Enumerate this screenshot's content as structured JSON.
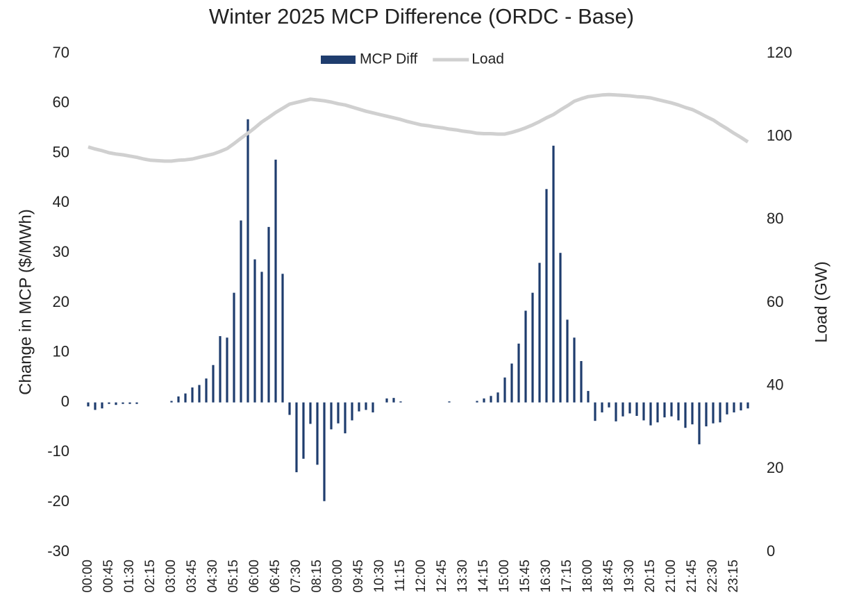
{
  "chart_data": {
    "type": "bar",
    "title": "Winter 2025 MCP Difference (ORDC - Base)",
    "y_label": "Change in MCP ($/MWh)",
    "y2_label": "Load (GW)",
    "categories": [
      "00:00",
      null,
      null,
      "00:45",
      null,
      null,
      "01:30",
      null,
      null,
      "02:15",
      null,
      null,
      "03:00",
      null,
      null,
      "03:45",
      null,
      null,
      "04:30",
      null,
      null,
      "05:15",
      null,
      null,
      "06:00",
      null,
      null,
      "06:45",
      null,
      null,
      "07:30",
      null,
      null,
      "08:15",
      null,
      null,
      "09:00",
      null,
      null,
      "09:45",
      null,
      null,
      "10:30",
      null,
      null,
      "11:15",
      null,
      null,
      "12:00",
      null,
      null,
      "12:45",
      null,
      null,
      "13:30",
      null,
      null,
      "14:15",
      null,
      null,
      "15:00",
      null,
      null,
      "15:45",
      null,
      null,
      "16:30",
      null,
      null,
      "17:15",
      null,
      null,
      "18:00",
      null,
      null,
      "18:45",
      null,
      null,
      "19:30",
      null,
      null,
      "20:15",
      null,
      null,
      "21:00",
      null,
      null,
      "21:45",
      null,
      null,
      "22:30",
      null,
      null,
      "23:15",
      null,
      null
    ],
    "series": [
      {
        "name": "MCP Diff",
        "type": "bar",
        "color": "#1f3d6e",
        "values": [
          -0.8,
          -1.5,
          -1.2,
          -0.3,
          -0.5,
          -0.3,
          -0.3,
          -0.3,
          0,
          0,
          0,
          0,
          0.3,
          1.2,
          1.8,
          3,
          3.5,
          4.8,
          7.5,
          13.3,
          13,
          22,
          36.5,
          56.8,
          28.7,
          26.2,
          35.2,
          48.7,
          25.8,
          -2.5,
          -14,
          -11.3,
          -4.3,
          -12.5,
          -19.8,
          -5.4,
          -4.2,
          -6.2,
          -3.6,
          -1.8,
          -1.5,
          -2,
          0,
          0.8,
          0.9,
          0.2,
          0,
          0,
          0,
          0,
          0,
          0,
          0.2,
          0,
          0,
          0,
          0.3,
          0.8,
          1.3,
          2,
          5,
          7.8,
          11.8,
          18.4,
          22,
          28,
          42.8,
          51.5,
          30,
          16.6,
          13,
          8.3,
          2.3,
          -3.7,
          -2,
          -1,
          -3.8,
          -2.8,
          -2.2,
          -2.7,
          -3.6,
          -4.6,
          -4,
          -3,
          -2.8,
          -3.6,
          -5.1,
          -4.4,
          -8.4,
          -4.8,
          -4.2,
          -4,
          -2.4,
          -2,
          -1.6,
          -1.2
        ]
      },
      {
        "name": "Load",
        "type": "line",
        "axis": "y2",
        "color": "#d0d0d0",
        "values": [
          97.5,
          97.0,
          96.6,
          96.1,
          95.8,
          95.6,
          95.3,
          95.0,
          94.6,
          94.3,
          94.2,
          94.1,
          94.1,
          94.3,
          94.4,
          94.6,
          95.0,
          95.4,
          95.8,
          96.4,
          97.1,
          98.3,
          99.6,
          100.8,
          102.1,
          103.5,
          104.6,
          105.8,
          106.8,
          107.8,
          108.2,
          108.6,
          109.0,
          108.8,
          108.6,
          108.3,
          107.9,
          107.6,
          107.1,
          106.6,
          106.1,
          105.7,
          105.3,
          104.9,
          104.5,
          104.1,
          103.6,
          103.2,
          102.8,
          102.6,
          102.3,
          102.1,
          101.8,
          101.6,
          101.3,
          101.1,
          100.8,
          100.7,
          100.7,
          100.6,
          100.6,
          101.0,
          101.5,
          102.1,
          102.8,
          103.6,
          104.5,
          105.3,
          106.4,
          107.4,
          108.5,
          109.1,
          109.6,
          109.8,
          110.0,
          110.1,
          110.0,
          109.9,
          109.8,
          109.6,
          109.5,
          109.3,
          108.9,
          108.5,
          108.1,
          107.6,
          107.0,
          106.5,
          105.7,
          104.8,
          104.0,
          102.9,
          101.9,
          100.8,
          99.8,
          98.7
        ]
      }
    ],
    "ylim": [
      -30,
      70
    ],
    "yticks": [
      -30,
      -20,
      -10,
      0,
      10,
      20,
      30,
      40,
      50,
      60,
      70
    ],
    "y2lim": [
      0,
      120
    ],
    "y2ticks": [
      0,
      20,
      40,
      60,
      80,
      100,
      120
    ],
    "grid": false,
    "legend": "top"
  }
}
